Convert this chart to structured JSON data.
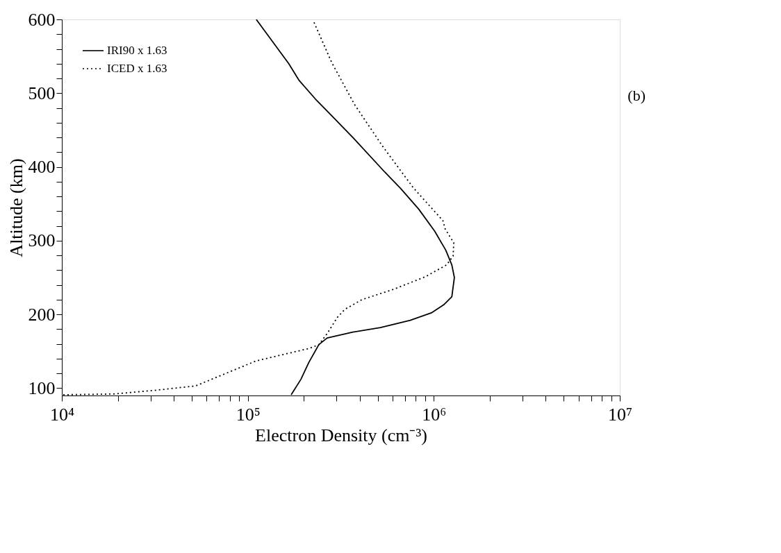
{
  "chart_data": {
    "type": "line",
    "xlabel": "Electron Density (cm⁻³)",
    "ylabel": "Altitude (km)",
    "log": "x",
    "xlim": [
      10000,
      10000000
    ],
    "ylim": [
      90,
      600
    ],
    "xticks": [
      {
        "value": 10000,
        "label": "10⁴"
      },
      {
        "value": 20000,
        "label": null
      },
      {
        "value": 30000,
        "label": null
      },
      {
        "value": 40000,
        "label": null
      },
      {
        "value": 50000,
        "label": null
      },
      {
        "value": 60000,
        "label": null
      },
      {
        "value": 70000,
        "label": null
      },
      {
        "value": 80000,
        "label": null
      },
      {
        "value": 90000,
        "label": null
      },
      {
        "value": 100000,
        "label": "10⁵"
      },
      {
        "value": 200000,
        "label": null
      },
      {
        "value": 300000,
        "label": null
      },
      {
        "value": 400000,
        "label": null
      },
      {
        "value": 500000,
        "label": null
      },
      {
        "value": 600000,
        "label": null
      },
      {
        "value": 700000,
        "label": null
      },
      {
        "value": 800000,
        "label": null
      },
      {
        "value": 900000,
        "label": null
      },
      {
        "value": 1000000,
        "label": "10⁶"
      },
      {
        "value": 2000000,
        "label": null
      },
      {
        "value": 3000000,
        "label": null
      },
      {
        "value": 4000000,
        "label": null
      },
      {
        "value": 5000000,
        "label": null
      },
      {
        "value": 6000000,
        "label": null
      },
      {
        "value": 7000000,
        "label": null
      },
      {
        "value": 8000000,
        "label": null
      },
      {
        "value": 9000000,
        "label": null
      },
      {
        "value": 10000000,
        "label": "10⁷"
      }
    ],
    "yticks": [
      100,
      {
        "value": 120,
        "label": null
      },
      {
        "value": 140,
        "label": null
      },
      {
        "value": 160,
        "label": null
      },
      {
        "value": 180,
        "label": null
      },
      200,
      {
        "value": 220,
        "label": null
      },
      {
        "value": 240,
        "label": null
      },
      {
        "value": 260,
        "label": null
      },
      {
        "value": 280,
        "label": null
      },
      300,
      {
        "value": 320,
        "label": null
      },
      {
        "value": 340,
        "label": null
      },
      {
        "value": 360,
        "label": null
      },
      {
        "value": 380,
        "label": null
      },
      400,
      {
        "value": 420,
        "label": null
      },
      {
        "value": 440,
        "label": null
      },
      {
        "value": 460,
        "label": null
      },
      {
        "value": 480,
        "label": null
      },
      500,
      {
        "value": 520,
        "label": null
      },
      {
        "value": 540,
        "label": null
      },
      {
        "value": 560,
        "label": null
      },
      {
        "value": 580,
        "label": null
      },
      600
    ],
    "grid": false,
    "legend": "top left",
    "marker": "none",
    "annotations": [
      "(b)"
    ],
    "series": [
      {
        "name": "IRI90 x 1.63",
        "color": "#000000",
        "line_style": "solid",
        "x": [
          111000,
          166000,
          189000,
          231000,
          281000,
          370000,
          545000,
          662000,
          828000,
          1010000,
          1160000,
          1250000,
          1290000,
          1250000,
          1130000,
          970000,
          747000,
          516000,
          367000,
          267000,
          241000,
          213000,
          193000,
          171000
        ],
        "values": [
          600,
          540,
          517,
          492,
          470,
          439,
          393,
          371,
          343,
          313,
          287,
          267,
          250,
          224,
          213,
          202,
          192,
          182,
          176,
          168,
          159,
          135,
          112,
          91
        ]
      },
      {
        "name": "ICED x 1.63",
        "color": "#000000",
        "line_style": "dotted",
        "x": [
          227000,
          282000,
          374000,
          527000,
          774000,
          1120000,
          1150000,
          1280000,
          1270000,
          1170000,
          900000,
          607000,
          411000,
          333000,
          303000,
          267000,
          241000,
          215000,
          111000,
          52400,
          31600,
          18900,
          10000
        ],
        "values": [
          596,
          542,
          485,
          429,
          372,
          327,
          316,
          297,
          279,
          267,
          251,
          234,
          220,
          207,
          196,
          174,
          159,
          154,
          137,
          103,
          97,
          92,
          91
        ]
      }
    ]
  }
}
